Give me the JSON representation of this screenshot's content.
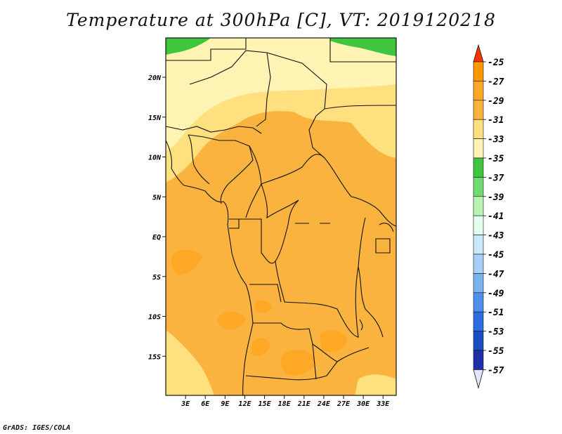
{
  "title": "Temperature at 300hPa [C], VT: 2019120218",
  "footer": "GrADS: IGES/COLA",
  "map": {
    "lat_ticks": [
      {
        "label": "20N",
        "lat": 20
      },
      {
        "label": "15N",
        "lat": 15
      },
      {
        "label": "10N",
        "lat": 10
      },
      {
        "label": "5N",
        "lat": 5
      },
      {
        "label": "EQ",
        "lat": 0
      },
      {
        "label": "5S",
        "lat": -5
      },
      {
        "label": "10S",
        "lat": -10
      },
      {
        "label": "15S",
        "lat": -15
      }
    ],
    "lon_ticks": [
      {
        "label": "3E",
        "lon": 3
      },
      {
        "label": "6E",
        "lon": 6
      },
      {
        "label": "9E",
        "lon": 9
      },
      {
        "label": "12E",
        "lon": 12
      },
      {
        "label": "15E",
        "lon": 15
      },
      {
        "label": "18E",
        "lon": 18
      },
      {
        "label": "21E",
        "lon": 21
      },
      {
        "label": "24E",
        "lon": 24
      },
      {
        "label": "27E",
        "lon": 27
      },
      {
        "label": "30E",
        "lon": 30
      },
      {
        "label": "33E",
        "lon": 33
      }
    ],
    "lon_range": [
      0,
      35
    ],
    "lat_range": [
      -20,
      25
    ]
  },
  "colorbar": {
    "levels": [
      {
        "label": "-25",
        "color": "#ff5a00"
      },
      {
        "label": "-27",
        "color": "#ff9800"
      },
      {
        "label": "-29",
        "color": "#ffa826"
      },
      {
        "label": "-31",
        "color": "#fbb33f"
      },
      {
        "label": "-33",
        "color": "#fee07f"
      },
      {
        "label": "-35",
        "color": "#fff4b4"
      },
      {
        "label": "-37",
        "color": "#3ec63e"
      },
      {
        "label": "-39",
        "color": "#6fdc6f"
      },
      {
        "label": "-41",
        "color": "#b8f4b2"
      },
      {
        "label": "-43",
        "color": "#e4ffee"
      },
      {
        "label": "-45",
        "color": "#cbe8fb"
      },
      {
        "label": "-47",
        "color": "#a6d0f7"
      },
      {
        "label": "-49",
        "color": "#79b4f0"
      },
      {
        "label": "-51",
        "color": "#4d91e8"
      },
      {
        "label": "-53",
        "color": "#2b6ee0"
      },
      {
        "label": "-55",
        "color": "#1a4fc4"
      },
      {
        "label": "-57",
        "color": "#2030a8"
      }
    ],
    "top_arrow_color": "#ff3200",
    "bottom_arrow_color": "#e2e6fb",
    "lowest_segment_color": "#101070"
  }
}
